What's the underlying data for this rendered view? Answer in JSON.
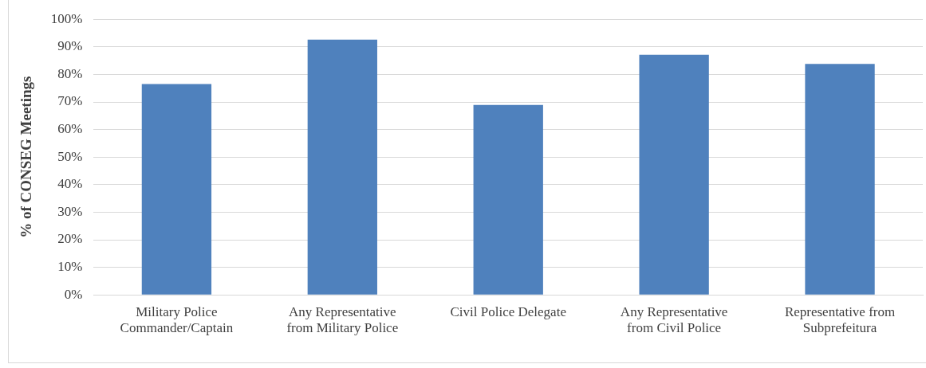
{
  "chart_data": {
    "type": "bar",
    "ylabel": "% of CONSEG Meetings",
    "categories": [
      "Military Police Commander/Captain",
      "Any Representative from Military Police",
      "Civil Police Delegate",
      "Any Representative from Civil Police",
      "Representative from Subprefeitura"
    ],
    "values": [
      76.5,
      92.6,
      68.9,
      87.1,
      83.8
    ],
    "color": "#4f81bd",
    "ylim": [
      0,
      100
    ],
    "yticks": [
      {
        "value": 0,
        "label": "0%"
      },
      {
        "value": 10,
        "label": "10%"
      },
      {
        "value": 20,
        "label": "20%"
      },
      {
        "value": 30,
        "label": "30%"
      },
      {
        "value": 40,
        "label": "40%"
      },
      {
        "value": 50,
        "label": "50%"
      },
      {
        "value": 60,
        "label": "60%"
      },
      {
        "value": 70,
        "label": "70%"
      },
      {
        "value": 80,
        "label": "80%"
      },
      {
        "value": 90,
        "label": "90%"
      },
      {
        "value": 100,
        "label": "100%"
      }
    ],
    "grid": "y"
  }
}
